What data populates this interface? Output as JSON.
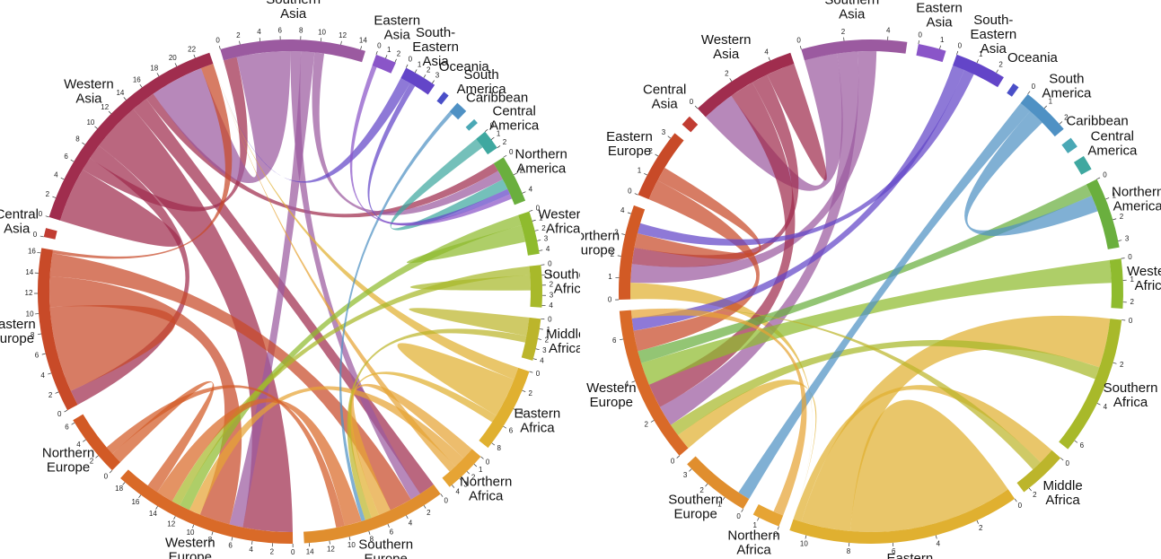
{
  "chart_data": [
    {
      "type": "chord",
      "regions": [
        {
          "name": "Southern Asia",
          "color": "#9b5aa0",
          "total": 14.5,
          "ticks": [
            0,
            2,
            4,
            6,
            8,
            10,
            12,
            14
          ]
        },
        {
          "name": "Eastern Asia",
          "color": "#8a55c8",
          "total": 2.1,
          "ticks": [
            0,
            1,
            2
          ]
        },
        {
          "name": "South-Eastern Asia",
          "color": "#6345c8",
          "total": 3.3,
          "ticks": [
            0,
            1,
            2,
            3
          ]
        },
        {
          "name": "Oceania",
          "color": "#4a4fc8",
          "total": 0.6,
          "ticks": []
        },
        {
          "name": "South America",
          "color": "#4f91c4",
          "total": 1.2,
          "ticks": []
        },
        {
          "name": "Caribbean",
          "color": "#4aa8b5",
          "total": 0.5,
          "ticks": []
        },
        {
          "name": "Central America",
          "color": "#3fa8a0",
          "total": 2.0,
          "ticks": [
            0,
            1,
            2
          ]
        },
        {
          "name": "Northern America",
          "color": "#6aaf3e",
          "total": 4.8,
          "ticks": [
            0,
            2,
            4
          ]
        },
        {
          "name": "Western Africa",
          "color": "#8fbb2e",
          "total": 4.3,
          "ticks": [
            0,
            1,
            2,
            3,
            4
          ]
        },
        {
          "name": "Southern Africa",
          "color": "#a8b92a",
          "total": 4.2,
          "ticks": [
            0,
            1,
            2,
            3,
            4
          ]
        },
        {
          "name": "Middle Africa",
          "color": "#bcb52b",
          "total": 4.2,
          "ticks": [
            0,
            1,
            2,
            3,
            4
          ]
        },
        {
          "name": "Eastern Africa",
          "color": "#e0b030",
          "total": 8.6,
          "ticks": [
            0,
            2,
            4,
            6,
            8
          ]
        },
        {
          "name": "Northern Africa",
          "color": "#e6a434",
          "total": 4.3,
          "ticks": [
            0,
            1,
            2,
            3,
            4
          ]
        },
        {
          "name": "Southern Europe",
          "color": "#e08e2e",
          "total": 14.5,
          "ticks": [
            0,
            2,
            4,
            6,
            8,
            10,
            12,
            14
          ]
        },
        {
          "name": "Western Europe",
          "color": "#d96a28",
          "total": 18.6,
          "ticks": [
            0,
            2,
            4,
            6,
            8,
            10,
            12,
            14,
            16,
            18
          ]
        },
        {
          "name": "Northern Europe",
          "color": "#d25a25",
          "total": 6.3,
          "ticks": [
            0,
            2,
            4,
            6
          ]
        },
        {
          "name": "Eastern Europe",
          "color": "#c84a28",
          "total": 16.5,
          "ticks": [
            0,
            2,
            4,
            6,
            8,
            10,
            12,
            14,
            16
          ]
        },
        {
          "name": "Central Asia",
          "color": "#c13c32",
          "total": 0.9,
          "ticks": [
            0
          ]
        },
        {
          "name": "Western Asia",
          "color": "#a02d4e",
          "total": 23.5,
          "ticks": [
            0,
            2,
            4,
            6,
            8,
            10,
            12,
            14,
            16,
            18,
            20,
            22
          ]
        }
      ],
      "flows": [
        {
          "from": "Western Asia",
          "to": "Western Asia",
          "value": 3.6
        },
        {
          "from": "Western Asia",
          "to": "Southern Asia",
          "value": 1.4
        },
        {
          "from": "Western Asia",
          "to": "Eastern Europe",
          "value": 1.6
        },
        {
          "from": "Western Asia",
          "to": "Western Europe",
          "value": 5.2
        },
        {
          "from": "Western Asia",
          "to": "Southern Europe",
          "value": 1.7
        },
        {
          "from": "Western Asia",
          "to": "Northern America",
          "value": 0.9
        },
        {
          "from": "Southern Asia",
          "to": "Western Asia",
          "value": 5.6
        },
        {
          "from": "Southern Asia",
          "to": "Southern Europe",
          "value": 1.1
        },
        {
          "from": "Southern Asia",
          "to": "Western Europe",
          "value": 1.4
        },
        {
          "from": "Southern Asia",
          "to": "Northern America",
          "value": 1.0
        },
        {
          "from": "Eastern Europe",
          "to": "Eastern Europe",
          "value": 5.6
        },
        {
          "from": "Eastern Europe",
          "to": "Western Europe",
          "value": 3.2
        },
        {
          "from": "Eastern Europe",
          "to": "Southern Europe",
          "value": 2.4
        },
        {
          "from": "Eastern Europe",
          "to": "Western Asia",
          "value": 1.4
        },
        {
          "from": "Northern Africa",
          "to": "Southern Europe",
          "value": 1.3
        },
        {
          "from": "Northern Africa",
          "to": "Western Europe",
          "value": 1.2
        },
        {
          "from": "Northern Africa",
          "to": "Western Asia",
          "value": 0.8
        },
        {
          "from": "Eastern Africa",
          "to": "Western Asia",
          "value": 1.3
        },
        {
          "from": "Eastern Africa",
          "to": "Eastern Africa",
          "value": 2.6
        },
        {
          "from": "Eastern Africa",
          "to": "Southern Europe",
          "value": 0.8
        },
        {
          "from": "Western Africa",
          "to": "Western Europe",
          "value": 1.1
        },
        {
          "from": "Western Africa",
          "to": "Western Africa",
          "value": 1.1
        },
        {
          "from": "Middle Africa",
          "to": "Middle Africa",
          "value": 1.2
        },
        {
          "from": "Middle Africa",
          "to": "Southern Europe",
          "value": 0.7
        },
        {
          "from": "Southern Africa",
          "to": "Western Europe",
          "value": 0.9
        },
        {
          "from": "Southern Africa",
          "to": "Southern Africa",
          "value": 1.0
        },
        {
          "from": "Central America",
          "to": "Northern America",
          "value": 1.1
        },
        {
          "from": "South America",
          "to": "Southern Europe",
          "value": 0.4
        },
        {
          "from": "South-Eastern Asia",
          "to": "Western Asia",
          "value": 1.1
        },
        {
          "from": "South-Eastern Asia",
          "to": "Northern America",
          "value": 0.6
        },
        {
          "from": "Eastern Asia",
          "to": "Northern America",
          "value": 0.5
        },
        {
          "from": "Western Europe",
          "to": "Southern Europe",
          "value": 1.8
        },
        {
          "from": "Northern Europe",
          "to": "Western Europe",
          "value": 1.2
        },
        {
          "from": "Northern Europe",
          "to": "Southern Europe",
          "value": 0.9
        }
      ]
    },
    {
      "type": "chord",
      "regions": [
        {
          "name": "Southern Asia",
          "color": "#9b5aa0",
          "total": 4.9,
          "ticks": [
            0,
            2,
            4
          ]
        },
        {
          "name": "Eastern Asia",
          "color": "#8a55c8",
          "total": 1.3,
          "ticks": [
            0,
            1
          ]
        },
        {
          "name": "South-Eastern Asia",
          "color": "#6345c8",
          "total": 2.4,
          "ticks": [
            0,
            1,
            2
          ]
        },
        {
          "name": "Oceania",
          "color": "#4a4fc8",
          "total": 0.3,
          "ticks": []
        },
        {
          "name": "South America",
          "color": "#4f91c4",
          "total": 2.3,
          "ticks": [
            0,
            1,
            2
          ]
        },
        {
          "name": "Caribbean",
          "color": "#4aa8b5",
          "total": 0.5,
          "ticks": []
        },
        {
          "name": "Central America",
          "color": "#3fa8a0",
          "total": 0.7,
          "ticks": []
        },
        {
          "name": "Northern America",
          "color": "#6aaf3e",
          "total": 3.3,
          "ticks": [
            0,
            1,
            2,
            3
          ]
        },
        {
          "name": "Western Africa",
          "color": "#8fbb2e",
          "total": 2.3,
          "ticks": [
            0,
            1,
            2
          ]
        },
        {
          "name": "Southern Africa",
          "color": "#a8b92a",
          "total": 6.5,
          "ticks": [
            0,
            2,
            4,
            6
          ]
        },
        {
          "name": "Middle Africa",
          "color": "#bcb52b",
          "total": 2.3,
          "ticks": [
            0,
            2
          ]
        },
        {
          "name": "Eastern Africa",
          "color": "#e0b030",
          "total": 10.8,
          "ticks": [
            0,
            2,
            4,
            6,
            8,
            10
          ]
        },
        {
          "name": "Northern Africa",
          "color": "#e6a434",
          "total": 1.3,
          "ticks": [
            0,
            1
          ]
        },
        {
          "name": "Southern Europe",
          "color": "#e08e2e",
          "total": 3.3,
          "ticks": [
            0,
            1,
            2,
            3
          ]
        },
        {
          "name": "Western Europe",
          "color": "#d96a28",
          "total": 7.3,
          "ticks": [
            0,
            2,
            4,
            6
          ]
        },
        {
          "name": "Northern Europe",
          "color": "#d25a25",
          "total": 4.4,
          "ticks": [
            0,
            1,
            2,
            3,
            4
          ]
        },
        {
          "name": "Eastern Europe",
          "color": "#c84a28",
          "total": 3.3,
          "ticks": [
            0,
            1,
            2,
            3
          ]
        },
        {
          "name": "Central Asia",
          "color": "#c13c32",
          "total": 0.5,
          "ticks": []
        },
        {
          "name": "Western Asia",
          "color": "#a02d4e",
          "total": 5.0,
          "ticks": [
            0,
            2,
            4
          ]
        }
      ],
      "flows": [
        {
          "from": "Eastern Africa",
          "to": "Eastern Africa",
          "value": 5.0
        },
        {
          "from": "Eastern Africa",
          "to": "Southern Africa",
          "value": 2.4
        },
        {
          "from": "Eastern Africa",
          "to": "Middle Africa",
          "value": 0.8
        },
        {
          "from": "Eastern Africa",
          "to": "Western Europe",
          "value": 0.8
        },
        {
          "from": "Eastern Africa",
          "to": "Northern Europe",
          "value": 0.8
        },
        {
          "from": "Southern Africa",
          "to": "Western Europe",
          "value": 0.6
        },
        {
          "from": "Southern Asia",
          "to": "Western Asia",
          "value": 1.6
        },
        {
          "from": "Southern Asia",
          "to": "Western Europe",
          "value": 1.0
        },
        {
          "from": "Southern Asia",
          "to": "Northern Europe",
          "value": 0.9
        },
        {
          "from": "Western Asia",
          "to": "Western Europe",
          "value": 1.2
        },
        {
          "from": "Western Asia",
          "to": "Northern Europe",
          "value": 0.8
        },
        {
          "from": "Western Asia",
          "to": "Western Asia",
          "value": 0.9
        },
        {
          "from": "Western Africa",
          "to": "Western Europe",
          "value": 1.1
        },
        {
          "from": "Northern America",
          "to": "Western Europe",
          "value": 0.6
        },
        {
          "from": "South America",
          "to": "Southern Europe",
          "value": 0.6
        },
        {
          "from": "South America",
          "to": "Northern America",
          "value": 0.8
        },
        {
          "from": "Eastern Europe",
          "to": "Western Europe",
          "value": 1.0
        },
        {
          "from": "Eastern Europe",
          "to": "Northern Europe",
          "value": 0.7
        },
        {
          "from": "South-Eastern Asia",
          "to": "Western Europe",
          "value": 0.6
        },
        {
          "from": "South-Eastern Asia",
          "to": "Northern Europe",
          "value": 0.5
        },
        {
          "from": "Northern Africa",
          "to": "Western Europe",
          "value": 0.5
        },
        {
          "from": "Middle Africa",
          "to": "Western Europe",
          "value": 0.5
        }
      ]
    }
  ]
}
